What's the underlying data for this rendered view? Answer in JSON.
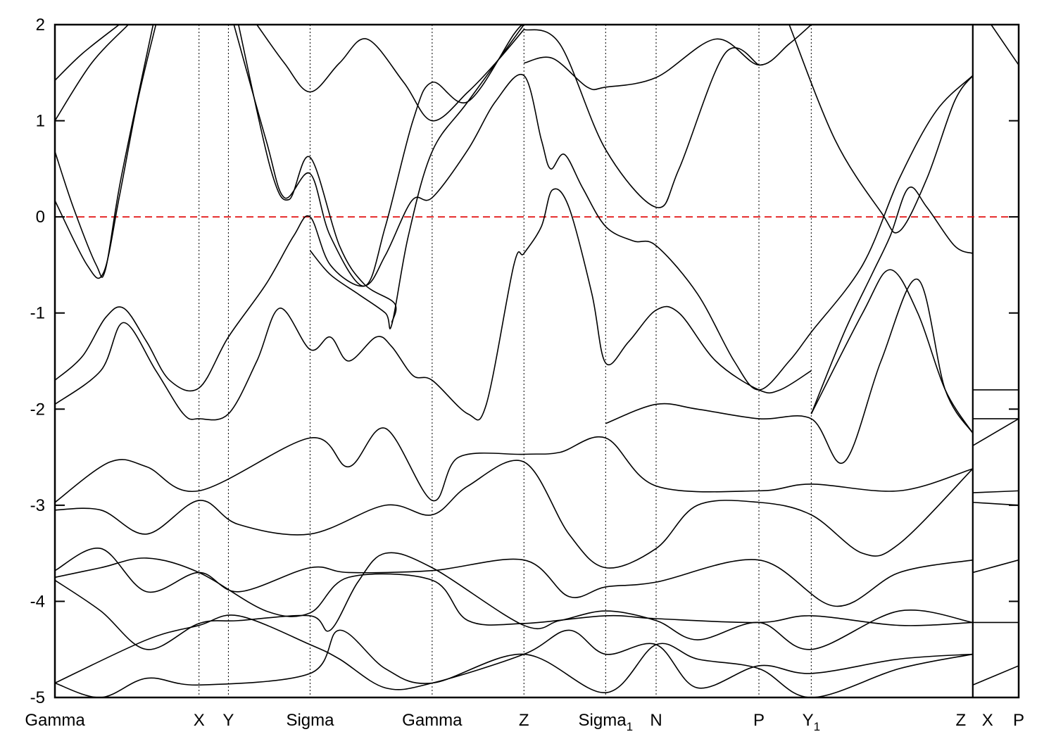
{
  "chart_data": {
    "type": "line",
    "title": "",
    "xlabel": "",
    "ylabel": "",
    "ylim": [
      -5,
      2
    ],
    "xlim": [
      0,
      10.5
    ],
    "yticks": [
      -5,
      -4,
      -3,
      -2,
      -1,
      0,
      1,
      2
    ],
    "grid": false,
    "fermi_level": 0,
    "colors": {
      "bands": "#000000",
      "fermi_line": "#e00000"
    },
    "kpoints": [
      {
        "label": "Gamma",
        "sub": "",
        "k": 0
      },
      {
        "label": "X",
        "sub": "",
        "k": 1.57
      },
      {
        "label": "Y",
        "sub": "",
        "k": 1.89
      },
      {
        "label": "Sigma",
        "sub": "",
        "k": 2.78
      },
      {
        "label": "Gamma",
        "sub": "",
        "k": 4.11
      },
      {
        "label": "Z",
        "sub": "",
        "k": 5.11
      },
      {
        "label": "Sigma",
        "sub": "1",
        "k": 6.0
      },
      {
        "label": "N",
        "sub": "",
        "k": 6.55
      },
      {
        "label": "P",
        "sub": "",
        "k": 7.67
      },
      {
        "label": "Y",
        "sub": "1",
        "k": 8.24
      },
      {
        "label": "Z",
        "sub": "",
        "k": 10.0
      },
      {
        "label": "X",
        "sub": "",
        "k": 10.0
      },
      {
        "label": "P",
        "sub": "",
        "k": 10.5
      }
    ],
    "discontinuity_k": 10.0,
    "bands": [
      [
        [
          0,
          0.17
        ],
        [
          0.35,
          -0.5
        ],
        [
          0.53,
          -0.58
        ],
        [
          0.7,
          0.2
        ],
        [
          0.9,
          1.2
        ],
        [
          1.1,
          2.0
        ]
      ],
      [
        [
          0,
          0.68
        ],
        [
          0.2,
          0.1
        ],
        [
          0.45,
          -0.5
        ],
        [
          0.55,
          -0.55
        ],
        [
          0.72,
          0.4
        ],
        [
          1.07,
          2.0
        ]
      ],
      [
        [
          0,
          1.0
        ],
        [
          0.4,
          1.6
        ],
        [
          0.8,
          2.0
        ]
      ],
      [
        [
          0,
          1.42
        ],
        [
          0.3,
          1.7
        ],
        [
          0.7,
          2.0
        ]
      ],
      [
        [
          0,
          -1.7
        ],
        [
          0.3,
          -1.45
        ],
        [
          0.55,
          -1.05
        ],
        [
          0.75,
          -0.95
        ],
        [
          1.0,
          -1.3
        ],
        [
          1.25,
          -1.7
        ],
        [
          1.57,
          -1.78
        ],
        [
          1.89,
          -1.25
        ],
        [
          2.3,
          -0.7
        ],
        [
          2.6,
          -0.2
        ],
        [
          2.78,
          0
        ],
        [
          3.0,
          -0.5
        ],
        [
          3.37,
          -0.72
        ],
        [
          3.6,
          -0.4
        ],
        [
          3.89,
          0.17
        ],
        [
          4.11,
          0.2
        ],
        [
          4.5,
          0.7
        ],
        [
          4.8,
          1.2
        ],
        [
          5.11,
          1.47
        ],
        [
          5.3,
          0.8
        ],
        [
          5.4,
          0.5
        ],
        [
          5.55,
          0.65
        ],
        [
          5.75,
          0.3
        ],
        [
          6.0,
          -0.1
        ],
        [
          6.3,
          -0.25
        ],
        [
          6.55,
          -0.3
        ],
        [
          7.0,
          -0.8
        ],
        [
          7.4,
          -1.5
        ],
        [
          7.67,
          -1.8
        ],
        [
          8.0,
          -1.5
        ],
        [
          8.24,
          -1.2
        ],
        [
          8.8,
          -0.5
        ],
        [
          9.2,
          0.4
        ],
        [
          9.6,
          1.1
        ],
        [
          10.0,
          1.47
        ]
      ],
      [
        [
          2.78,
          -0.35
        ],
        [
          3.0,
          -0.6
        ],
        [
          3.3,
          -0.8
        ],
        [
          3.6,
          -1.0
        ],
        [
          3.67,
          -1.12
        ],
        [
          3.85,
          -0.2
        ],
        [
          4.11,
          0.68
        ],
        [
          4.5,
          1.2
        ],
        [
          5.11,
          2.0
        ]
      ],
      [
        [
          1.95,
          2.0
        ],
        [
          2.3,
          0.8
        ],
        [
          2.5,
          0.2
        ],
        [
          2.78,
          0.45
        ],
        [
          3.0,
          -0.2
        ],
        [
          3.37,
          -0.72
        ],
        [
          3.6,
          -0.1
        ],
        [
          3.9,
          1.0
        ],
        [
          4.11,
          1.4
        ],
        [
          4.5,
          1.2
        ],
        [
          5.0,
          1.9
        ],
        [
          5.11,
          2.0
        ]
      ],
      [
        [
          2.0,
          2.0
        ],
        [
          2.35,
          0.5
        ],
        [
          2.55,
          0.18
        ],
        [
          2.78,
          0.62
        ],
        [
          3.1,
          -0.3
        ],
        [
          3.37,
          -0.7
        ],
        [
          3.7,
          -0.9
        ],
        [
          3.67,
          -1.1
        ]
      ],
      [
        [
          2.2,
          2.0
        ],
        [
          2.5,
          1.6
        ],
        [
          2.78,
          1.3
        ],
        [
          3.1,
          1.6
        ],
        [
          3.4,
          1.85
        ],
        [
          3.8,
          1.4
        ],
        [
          4.11,
          1.0
        ],
        [
          4.5,
          1.3
        ],
        [
          4.8,
          1.6
        ],
        [
          5.11,
          1.95
        ]
      ],
      [
        [
          0,
          -1.95
        ],
        [
          0.5,
          -1.6
        ],
        [
          0.75,
          -1.1
        ],
        [
          1.1,
          -1.6
        ],
        [
          1.4,
          -2.05
        ],
        [
          1.57,
          -2.1
        ],
        [
          1.89,
          -2.05
        ],
        [
          2.2,
          -1.5
        ],
        [
          2.45,
          -0.95
        ],
        [
          2.78,
          -1.38
        ],
        [
          3.0,
          -1.25
        ],
        [
          3.2,
          -1.5
        ],
        [
          3.5,
          -1.25
        ],
        [
          3.67,
          -1.35
        ],
        [
          3.9,
          -1.65
        ],
        [
          4.11,
          -1.7
        ],
        [
          4.5,
          -2.05
        ],
        [
          4.7,
          -1.95
        ],
        [
          5.0,
          -0.5
        ],
        [
          5.11,
          -0.38
        ],
        [
          5.3,
          -0.1
        ],
        [
          5.42,
          0.28
        ],
        [
          5.6,
          0.1
        ],
        [
          5.85,
          -0.8
        ],
        [
          6.0,
          -1.52
        ],
        [
          6.25,
          -1.3
        ],
        [
          6.55,
          -0.97
        ],
        [
          6.8,
          -1.0
        ],
        [
          7.2,
          -1.5
        ],
        [
          7.67,
          -1.8
        ],
        [
          7.9,
          -1.8
        ],
        [
          8.24,
          -1.6
        ]
      ],
      [
        [
          0,
          -2.97
        ],
        [
          0.6,
          -2.55
        ],
        [
          1.0,
          -2.6
        ],
        [
          1.57,
          -2.85
        ],
        [
          2.78,
          -2.3
        ],
        [
          3.2,
          -2.6
        ],
        [
          3.6,
          -2.2
        ],
        [
          4.11,
          -2.95
        ],
        [
          4.4,
          -2.5
        ],
        [
          5.11,
          -2.47
        ],
        [
          5.5,
          -2.45
        ],
        [
          6.0,
          -2.3
        ],
        [
          6.55,
          -2.8
        ],
        [
          7.67,
          -2.85
        ],
        [
          8.24,
          -2.78
        ],
        [
          9.2,
          -2.85
        ],
        [
          10.0,
          -2.62
        ]
      ],
      [
        [
          0,
          -3.05
        ],
        [
          0.5,
          -3.05
        ],
        [
          1.0,
          -3.3
        ],
        [
          1.57,
          -2.95
        ],
        [
          2.0,
          -3.2
        ],
        [
          2.78,
          -3.3
        ],
        [
          3.6,
          -3.0
        ],
        [
          4.11,
          -3.1
        ],
        [
          4.5,
          -2.8
        ],
        [
          5.11,
          -2.55
        ],
        [
          5.6,
          -3.3
        ],
        [
          6.0,
          -3.65
        ],
        [
          6.55,
          -3.45
        ],
        [
          7.0,
          -3.0
        ],
        [
          7.67,
          -2.97
        ],
        [
          8.24,
          -3.1
        ],
        [
          8.8,
          -3.5
        ],
        [
          9.2,
          -3.4
        ],
        [
          10.0,
          -2.62
        ]
      ],
      [
        [
          0,
          -3.68
        ],
        [
          0.5,
          -3.45
        ],
        [
          1.0,
          -3.9
        ],
        [
          1.57,
          -3.7
        ],
        [
          2.0,
          -3.9
        ],
        [
          2.78,
          -3.65
        ],
        [
          3.2,
          -3.7
        ],
        [
          4.11,
          -3.68
        ],
        [
          5.11,
          -3.57
        ],
        [
          5.6,
          -3.95
        ],
        [
          6.0,
          -3.85
        ],
        [
          6.55,
          -3.8
        ],
        [
          7.67,
          -3.57
        ],
        [
          8.5,
          -4.05
        ],
        [
          9.2,
          -3.7
        ],
        [
          10.0,
          -3.57
        ]
      ],
      [
        [
          0,
          -3.75
        ],
        [
          0.5,
          -3.65
        ],
        [
          1.0,
          -3.55
        ],
        [
          1.57,
          -3.7
        ],
        [
          2.3,
          -4.1
        ],
        [
          2.78,
          -4.12
        ],
        [
          3.2,
          -3.75
        ],
        [
          4.11,
          -3.78
        ],
        [
          4.5,
          -4.2
        ],
        [
          5.11,
          -4.23
        ],
        [
          6.0,
          -4.15
        ],
        [
          6.55,
          -4.18
        ],
        [
          7.67,
          -4.22
        ],
        [
          8.24,
          -4.15
        ],
        [
          9.2,
          -4.25
        ],
        [
          10.0,
          -4.22
        ]
      ],
      [
        [
          0,
          -3.78
        ],
        [
          0.5,
          -4.1
        ],
        [
          1.0,
          -4.5
        ],
        [
          1.57,
          -4.23
        ],
        [
          2.0,
          -4.2
        ],
        [
          2.78,
          -4.15
        ],
        [
          3.0,
          -4.3
        ],
        [
          3.3,
          -3.8
        ],
        [
          3.6,
          -3.5
        ],
        [
          4.11,
          -3.65
        ],
        [
          5.11,
          -4.25
        ],
        [
          5.5,
          -4.2
        ],
        [
          6.0,
          -4.1
        ],
        [
          6.55,
          -4.2
        ],
        [
          7.0,
          -4.4
        ],
        [
          7.67,
          -4.22
        ],
        [
          8.24,
          -4.5
        ],
        [
          9.2,
          -4.1
        ],
        [
          10.0,
          -4.22
        ]
      ],
      [
        [
          0,
          -4.85
        ],
        [
          1.0,
          -4.4
        ],
        [
          1.57,
          -4.25
        ],
        [
          2.0,
          -4.15
        ],
        [
          2.78,
          -4.45
        ],
        [
          3.1,
          -4.6
        ],
        [
          3.6,
          -4.9
        ],
        [
          4.11,
          -4.85
        ],
        [
          5.11,
          -4.55
        ],
        [
          5.6,
          -4.3
        ],
        [
          6.0,
          -4.55
        ],
        [
          6.55,
          -4.45
        ],
        [
          7.0,
          -4.9
        ],
        [
          7.67,
          -4.67
        ],
        [
          8.24,
          -4.75
        ],
        [
          9.2,
          -4.6
        ],
        [
          10.0,
          -4.55
        ]
      ],
      [
        [
          0,
          -4.85
        ],
        [
          0.5,
          -5.0
        ],
        [
          1.0,
          -4.8
        ],
        [
          1.57,
          -4.87
        ],
        [
          2.78,
          -4.75
        ],
        [
          3.1,
          -4.3
        ],
        [
          3.6,
          -4.7
        ],
        [
          4.11,
          -4.85
        ],
        [
          5.11,
          -4.55
        ],
        [
          6.0,
          -4.95
        ],
        [
          6.55,
          -4.45
        ],
        [
          7.0,
          -4.6
        ],
        [
          7.67,
          -4.7
        ],
        [
          8.24,
          -5.0
        ],
        [
          9.2,
          -4.7
        ],
        [
          10.0,
          -4.55
        ]
      ],
      [
        [
          5.11,
          1.6
        ],
        [
          5.42,
          1.65
        ],
        [
          5.8,
          1.35
        ],
        [
          6.0,
          1.35
        ],
        [
          6.55,
          1.45
        ],
        [
          7.2,
          1.85
        ],
        [
          7.67,
          1.58
        ],
        [
          8.0,
          1.8
        ],
        [
          8.24,
          2.0
        ]
      ],
      [
        [
          5.11,
          1.95
        ],
        [
          5.5,
          1.8
        ],
        [
          6.0,
          0.7
        ],
        [
          6.55,
          0.1
        ],
        [
          6.8,
          0.5
        ],
        [
          7.3,
          1.7
        ],
        [
          7.67,
          1.58
        ]
      ],
      [
        [
          8.24,
          -2.05
        ],
        [
          8.6,
          -1.2
        ],
        [
          8.9,
          -0.6
        ],
        [
          9.1,
          -0.2
        ],
        [
          9.3,
          0.3
        ],
        [
          9.5,
          0.1
        ],
        [
          9.8,
          -0.3
        ],
        [
          10.0,
          -0.38
        ]
      ],
      [
        [
          8.24,
          -2.05
        ],
        [
          8.8,
          -1.0
        ],
        [
          9.1,
          -0.55
        ],
        [
          9.4,
          -1.0
        ],
        [
          9.7,
          -1.8
        ],
        [
          10.0,
          -2.25
        ]
      ],
      [
        [
          8.0,
          2.0
        ],
        [
          8.5,
          0.8
        ],
        [
          9.0,
          0.05
        ],
        [
          9.2,
          -0.15
        ],
        [
          9.5,
          0.4
        ],
        [
          9.8,
          1.2
        ],
        [
          10.0,
          1.47
        ]
      ],
      [
        [
          6.0,
          -2.15
        ],
        [
          6.55,
          -1.95
        ],
        [
          7.0,
          -2.0
        ],
        [
          7.67,
          -2.1
        ],
        [
          8.24,
          -2.1
        ],
        [
          8.6,
          -2.55
        ],
        [
          9.0,
          -1.5
        ],
        [
          9.4,
          -0.65
        ],
        [
          9.7,
          -1.8
        ],
        [
          10.0,
          -2.25
        ]
      ],
      [
        [
          10.0,
          -1.8
        ],
        [
          10.5,
          -1.8
        ]
      ],
      [
        [
          10.0,
          -2.1
        ],
        [
          10.5,
          -2.1
        ]
      ],
      [
        [
          10.0,
          -2.38
        ],
        [
          10.5,
          -2.1
        ]
      ],
      [
        [
          10.0,
          -2.87
        ],
        [
          10.5,
          -2.85
        ]
      ],
      [
        [
          10.0,
          -2.97
        ],
        [
          10.5,
          -3.0
        ]
      ],
      [
        [
          10.0,
          -3.7
        ],
        [
          10.5,
          -3.57
        ]
      ],
      [
        [
          10.0,
          -4.22
        ],
        [
          10.5,
          -4.22
        ]
      ],
      [
        [
          10.0,
          -4.87
        ],
        [
          10.5,
          -4.67
        ]
      ],
      [
        [
          10.2,
          2.0
        ],
        [
          10.5,
          1.58
        ]
      ]
    ]
  }
}
